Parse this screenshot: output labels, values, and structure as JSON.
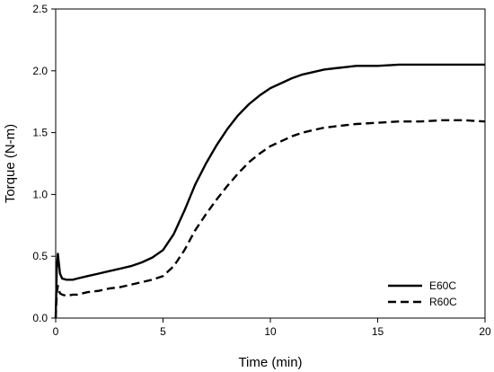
{
  "chart_data": {
    "type": "line",
    "title": "",
    "xlabel": "Time (min)",
    "ylabel": "Torque (N-m)",
    "xlim": [
      0,
      20
    ],
    "ylim": [
      0,
      2.5
    ],
    "x_ticks": [
      0,
      5,
      10,
      15,
      20
    ],
    "y_ticks": [
      0.0,
      0.5,
      1.0,
      1.5,
      2.0,
      2.5
    ],
    "x_tick_labels": [
      "0",
      "5",
      "10",
      "15",
      "20"
    ],
    "y_tick_labels": [
      "0.0",
      "0.5",
      "1.0",
      "1.5",
      "2.0",
      "2.5"
    ],
    "grid": false,
    "legend_position": "bottom-right",
    "series": [
      {
        "name": "E60C",
        "line_style": "solid",
        "color": "#000000",
        "x": [
          0,
          0.05,
          0.1,
          0.15,
          0.2,
          0.3,
          0.5,
          0.8,
          1,
          1.5,
          2,
          2.5,
          3,
          3.5,
          4,
          4.5,
          5,
          5.5,
          6,
          6.5,
          7,
          7.5,
          8,
          8.5,
          9,
          9.5,
          10,
          10.5,
          11,
          11.5,
          12,
          12.5,
          13,
          13.5,
          14,
          15,
          16,
          17,
          18,
          19,
          20
        ],
        "values": [
          0.0,
          0.4,
          0.52,
          0.44,
          0.36,
          0.32,
          0.31,
          0.31,
          0.32,
          0.34,
          0.36,
          0.38,
          0.4,
          0.42,
          0.45,
          0.49,
          0.55,
          0.68,
          0.87,
          1.08,
          1.25,
          1.4,
          1.53,
          1.64,
          1.73,
          1.8,
          1.86,
          1.9,
          1.94,
          1.97,
          1.99,
          2.01,
          2.02,
          2.03,
          2.04,
          2.04,
          2.05,
          2.05,
          2.05,
          2.05,
          2.05
        ]
      },
      {
        "name": "R60C",
        "line_style": "dashed",
        "color": "#000000",
        "x": [
          0,
          0.05,
          0.1,
          0.15,
          0.2,
          0.3,
          0.5,
          0.8,
          1,
          1.5,
          2,
          2.5,
          3,
          3.5,
          4,
          4.5,
          5,
          5.5,
          6,
          6.5,
          7,
          7.5,
          8,
          8.5,
          9,
          9.5,
          10,
          10.5,
          11,
          11.5,
          12,
          12.5,
          13,
          13.5,
          14,
          15,
          16,
          17,
          18,
          19,
          20
        ],
        "values": [
          0.0,
          0.2,
          0.26,
          0.23,
          0.2,
          0.19,
          0.18,
          0.19,
          0.19,
          0.21,
          0.22,
          0.24,
          0.25,
          0.27,
          0.29,
          0.31,
          0.34,
          0.42,
          0.55,
          0.71,
          0.84,
          0.96,
          1.07,
          1.17,
          1.26,
          1.33,
          1.39,
          1.43,
          1.47,
          1.5,
          1.52,
          1.54,
          1.55,
          1.56,
          1.57,
          1.58,
          1.59,
          1.59,
          1.6,
          1.6,
          1.59
        ]
      }
    ]
  }
}
